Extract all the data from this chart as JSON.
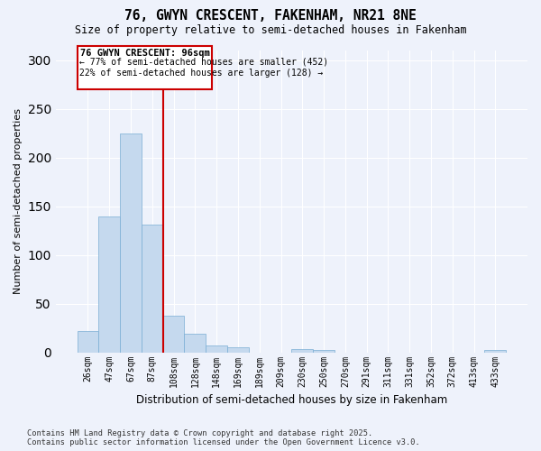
{
  "title1": "76, GWYN CRESCENT, FAKENHAM, NR21 8NE",
  "title2": "Size of property relative to semi-detached houses in Fakenham",
  "xlabel": "Distribution of semi-detached houses by size in Fakenham",
  "ylabel": "Number of semi-detached properties",
  "categories": [
    "26sqm",
    "47sqm",
    "67sqm",
    "87sqm",
    "108sqm",
    "128sqm",
    "148sqm",
    "169sqm",
    "189sqm",
    "209sqm",
    "230sqm",
    "250sqm",
    "270sqm",
    "291sqm",
    "311sqm",
    "331sqm",
    "352sqm",
    "372sqm",
    "413sqm",
    "433sqm"
  ],
  "values": [
    22,
    140,
    225,
    131,
    38,
    19,
    7,
    5,
    0,
    0,
    3,
    2,
    0,
    0,
    0,
    0,
    0,
    0,
    0,
    2
  ],
  "bar_color": "#c5d9ee",
  "bar_edge_color": "#7aadd4",
  "vline_x_index": 3.5,
  "vline_color": "#cc0000",
  "annotation_title": "76 GWYN CRESCENT: 96sqm",
  "annotation_line1": "← 77% of semi-detached houses are smaller (452)",
  "annotation_line2": "22% of semi-detached houses are larger (128) →",
  "annotation_box_color": "#cc0000",
  "background_color": "#eef2fb",
  "grid_color": "#ffffff",
  "ylim": [
    0,
    310
  ],
  "yticks": [
    0,
    50,
    100,
    150,
    200,
    250,
    300
  ],
  "footer": "Contains HM Land Registry data © Crown copyright and database right 2025.\nContains public sector information licensed under the Open Government Licence v3.0."
}
